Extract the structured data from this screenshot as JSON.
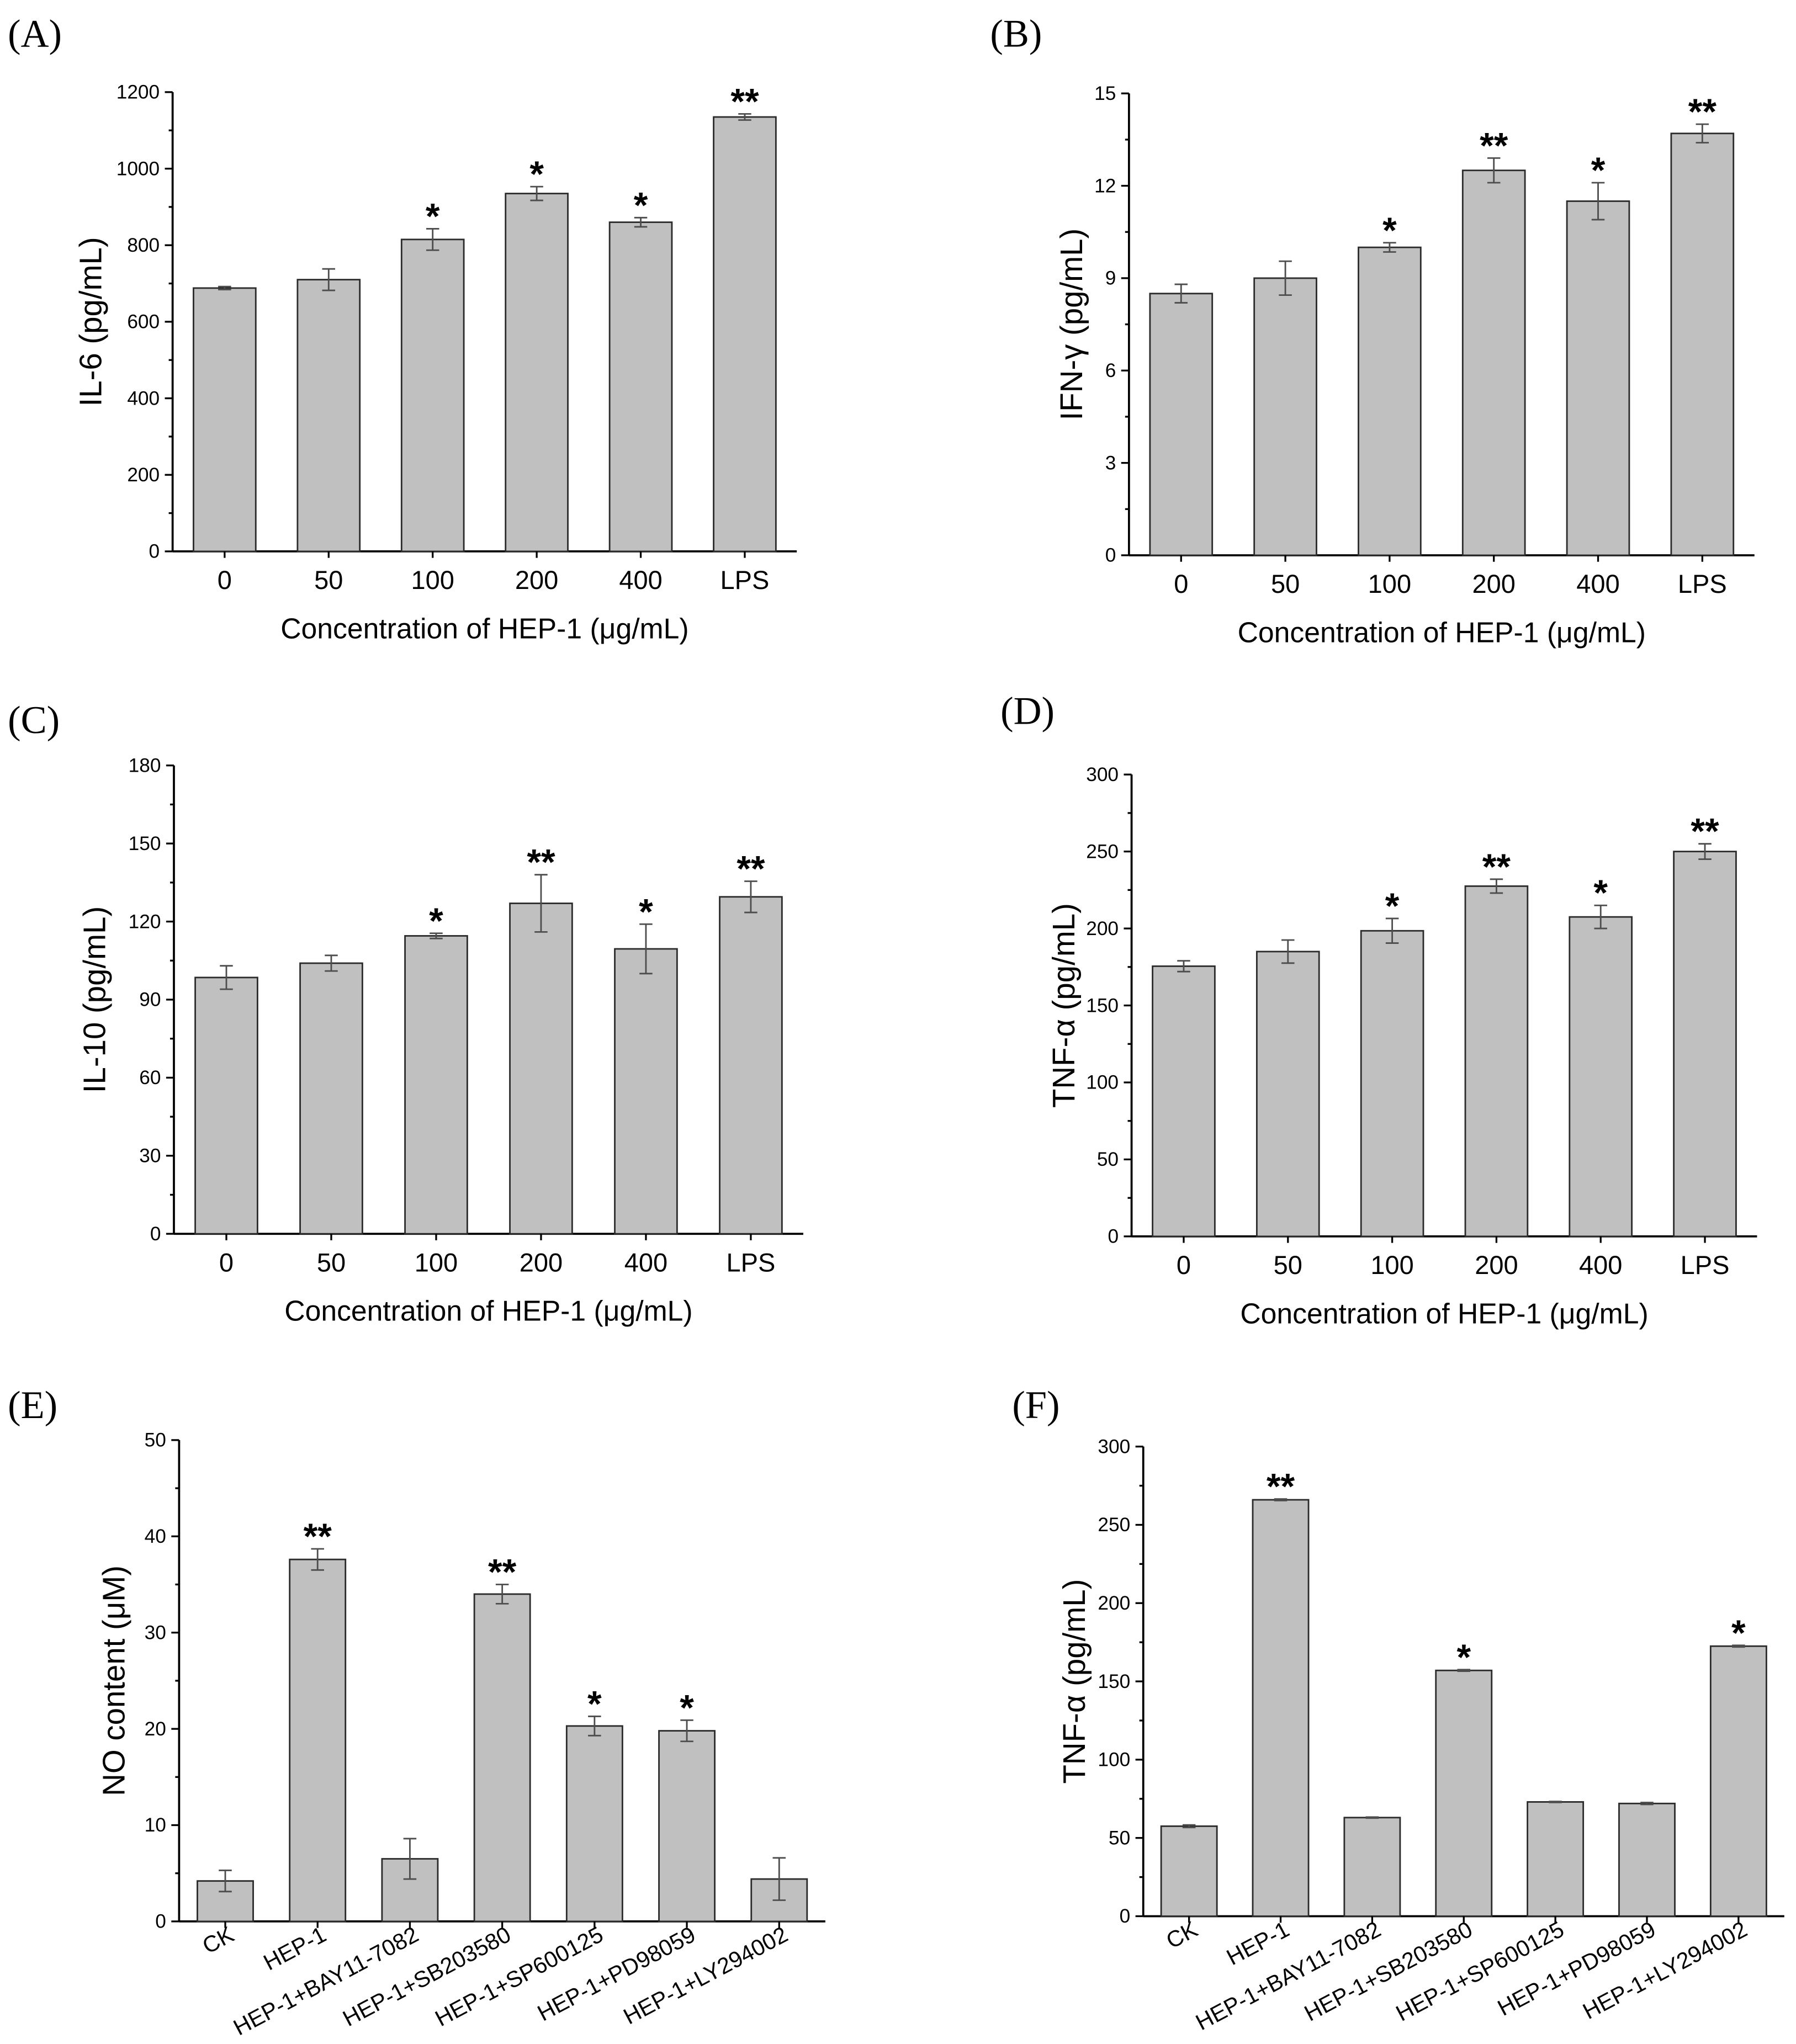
{
  "style": {
    "bar_color": "#c0c0c0",
    "error_color": "#4d4d4d"
  },
  "chart_data": [
    {
      "panel": "(A)",
      "type": "bar",
      "categories": [
        "0",
        "50",
        "100",
        "200",
        "400",
        "LPS"
      ],
      "values": [
        688,
        710,
        815,
        935,
        860,
        1135
      ],
      "errors": [
        4,
        28,
        28,
        18,
        12,
        8
      ],
      "significance": [
        "",
        "",
        "*",
        "*",
        "*",
        "**"
      ],
      "xlabel": "Concentration of HEP-1 (μg/mL)",
      "ylabel": "IL-6 (pg/mL)",
      "ylim": [
        0,
        1200
      ],
      "yticks": [
        0,
        200,
        400,
        600,
        800,
        1000,
        1200
      ]
    },
    {
      "panel": "(B)",
      "type": "bar",
      "categories": [
        "0",
        "50",
        "100",
        "200",
        "400",
        "LPS"
      ],
      "values": [
        8.5,
        9.0,
        10.0,
        12.5,
        11.5,
        13.7
      ],
      "errors": [
        0.3,
        0.55,
        0.15,
        0.4,
        0.6,
        0.3
      ],
      "significance": [
        "",
        "",
        "*",
        "**",
        "*",
        "**"
      ],
      "xlabel": "Concentration of HEP-1 (μg/mL)",
      "ylabel": "IFN-γ (pg/mL)",
      "ylim": [
        0,
        15
      ],
      "yticks": [
        0,
        3,
        6,
        9,
        12,
        15
      ]
    },
    {
      "panel": "(C)",
      "type": "bar",
      "categories": [
        "0",
        "50",
        "100",
        "200",
        "400",
        "LPS"
      ],
      "values": [
        98.5,
        104,
        114.5,
        127,
        109.5,
        129.5
      ],
      "errors": [
        4.5,
        3,
        1,
        11,
        9.5,
        6
      ],
      "significance": [
        "",
        "",
        "*",
        "**",
        "*",
        "**"
      ],
      "xlabel": "Concentration of HEP-1 (μg/mL)",
      "ylabel": "IL-10 (pg/mL)",
      "ylim": [
        0,
        180
      ],
      "yticks": [
        0,
        30,
        60,
        90,
        120,
        150,
        180
      ]
    },
    {
      "panel": "(D)",
      "type": "bar",
      "categories": [
        "0",
        "50",
        "100",
        "200",
        "400",
        "LPS"
      ],
      "values": [
        175.5,
        185,
        198.5,
        227.5,
        207.5,
        250
      ],
      "errors": [
        3.5,
        7.5,
        8,
        4.5,
        7.5,
        5
      ],
      "significance": [
        "",
        "",
        "*",
        "**",
        "*",
        "**"
      ],
      "xlabel": "Concentration of HEP-1 (μg/mL)",
      "ylabel": "TNF-α (pg/mL)",
      "ylim": [
        0,
        300
      ],
      "yticks": [
        0,
        50,
        100,
        150,
        200,
        250,
        300
      ]
    },
    {
      "panel": "(E)",
      "type": "bar",
      "categories": [
        "CK",
        "HEP-1",
        "HEP-1+BAY11-7082",
        "HEP-1+SB203580",
        "HEP-1+SP600125",
        "HEP-1+PD98059",
        "HEP-1+LY294002"
      ],
      "values": [
        4.2,
        37.6,
        6.5,
        34.0,
        20.3,
        19.8,
        4.4
      ],
      "errors": [
        1.1,
        1.1,
        2.1,
        1.0,
        1.0,
        1.1,
        2.2
      ],
      "significance": [
        "",
        "**",
        "",
        "**",
        "*",
        "*",
        ""
      ],
      "xlabel": "",
      "ylabel": "NO content (μM)",
      "ylim": [
        0,
        50
      ],
      "yticks": [
        0,
        10,
        20,
        30,
        40,
        50
      ]
    },
    {
      "panel": "(F)",
      "type": "bar",
      "categories": [
        "CK",
        "HEP-1",
        "HEP-1+BAY11-7082",
        "HEP-1+SB203580",
        "HEP-1+SP600125",
        "HEP-1+PD98059",
        "HEP-1+LY294002"
      ],
      "values": [
        57.5,
        266,
        63,
        157,
        73,
        72,
        172.5
      ],
      "errors": [
        0.8,
        0.5,
        0.3,
        0.5,
        0.3,
        0.6,
        0.5
      ],
      "significance": [
        "",
        "**",
        "",
        "*",
        "",
        "",
        "*"
      ],
      "xlabel": "",
      "ylabel": "TNF-α (pg/mL)",
      "ylim": [
        0,
        300
      ],
      "yticks": [
        0,
        50,
        100,
        150,
        200,
        250,
        300
      ]
    }
  ]
}
